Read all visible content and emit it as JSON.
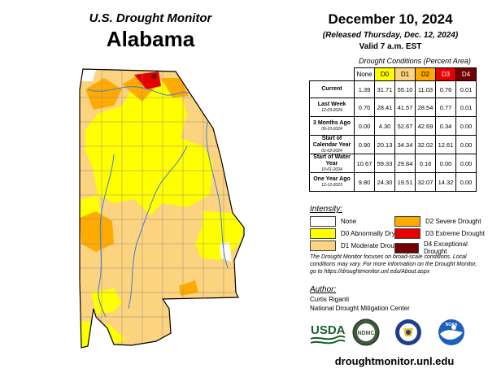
{
  "header": {
    "monitor_title": "U.S. Drought Monitor",
    "state": "Alabama",
    "date": "December 10, 2024",
    "released": "(Released Thursday, Dec. 12, 2024)",
    "valid": "Valid 7 a.m. EST"
  },
  "table": {
    "caption": "Drought Conditions (Percent Area)",
    "columns": [
      "None",
      "D0",
      "D1",
      "D2",
      "D3",
      "D4"
    ],
    "column_colors": [
      "#ffffff",
      "#ffff00",
      "#fcd37f",
      "#ffaa00",
      "#e60000",
      "#730000"
    ],
    "rows": [
      {
        "label": "Current",
        "date": "",
        "values": [
          "1.39",
          "31.71",
          "55.10",
          "11.03",
          "0.76",
          "0.01"
        ]
      },
      {
        "label": "Last Week",
        "date": "12-03-2024",
        "values": [
          "0.70",
          "28.41",
          "41.57",
          "28.54",
          "0.77",
          "0.01"
        ]
      },
      {
        "label": "3 Months Ago",
        "date": "09-10-2024",
        "values": [
          "0.00",
          "4.30",
          "52.67",
          "42.69",
          "0.34",
          "0.00"
        ]
      },
      {
        "label": "Start of Calendar Year",
        "date": "01-02-2024",
        "values": [
          "0.90",
          "20.13",
          "34.34",
          "32.02",
          "12.61",
          "0.00"
        ]
      },
      {
        "label": "Start of Water Year",
        "date": "10-01-2024",
        "values": [
          "10.67",
          "59.33",
          "29.84",
          "0.16",
          "0.00",
          "0.00"
        ]
      },
      {
        "label": "One Year Ago",
        "date": "12-12-2023",
        "values": [
          "9.80",
          "24.30",
          "19.51",
          "32.07",
          "14.32",
          "0.00"
        ]
      }
    ]
  },
  "legend": {
    "title": "Intensity:",
    "items": [
      {
        "label": "None",
        "color": "#ffffff"
      },
      {
        "label": "D0 Abnormally Dry",
        "color": "#ffff00"
      },
      {
        "label": "D1 Moderate Drought",
        "color": "#fcd37f"
      },
      {
        "label": "D2 Severe Drought",
        "color": "#ffaa00"
      },
      {
        "label": "D3 Extreme Drought",
        "color": "#e60000"
      },
      {
        "label": "D4 Exceptional Drought",
        "color": "#730000"
      }
    ]
  },
  "note": "The Drought Monitor focuses on broad-scale conditions. Local conditions may vary. For more information on the Drought Monitor, go to https://droughtmonitor.unl.edu/About.aspx",
  "author": {
    "label": "Author:",
    "name": "Curtis Riganti",
    "org": "National Drought Mitigation Center"
  },
  "logos": {
    "usda": "USDA",
    "ndmc": "NDMC",
    "noaa": "NOAA"
  },
  "website": "droughtmonitor.unl.edu"
}
